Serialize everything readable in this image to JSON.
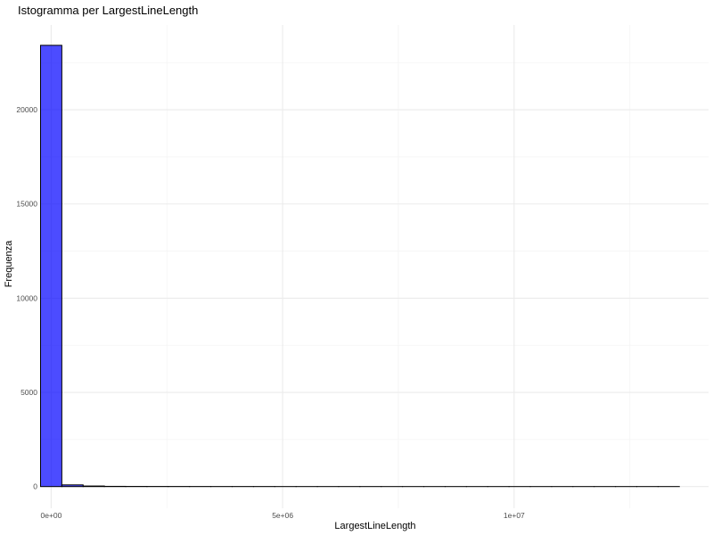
{
  "chart_data": {
    "type": "bar",
    "title": "Istogramma per LargestLineLength",
    "xlabel": "LargestLineLength",
    "ylabel": "Frequenza",
    "xlim": [
      -220000,
      14200000
    ],
    "ylim": [
      -1150,
      24500
    ],
    "x_ticks": [
      0,
      5000000,
      10000000
    ],
    "x_tick_labels": [
      "0e+00",
      "5e+06",
      "1e+07"
    ],
    "x_minor_ticks": [
      2500000,
      7500000,
      12500000
    ],
    "y_ticks": [
      0,
      5000,
      10000,
      15000,
      20000
    ],
    "y_tick_labels": [
      "0",
      "5000",
      "10000",
      "15000",
      "20000"
    ],
    "y_minor_ticks": [
      2500,
      7500,
      12500,
      17500,
      22500
    ],
    "grid": true,
    "bin_width": 460000,
    "bins_start": -230000,
    "bin_counts": [
      23420,
      90,
      30,
      12,
      8,
      6,
      5,
      4,
      3,
      3,
      3,
      2,
      2,
      2,
      2,
      2,
      1,
      1,
      1,
      1,
      1,
      1,
      1,
      1,
      1,
      1,
      1,
      1,
      1,
      1
    ],
    "colors": {
      "bar_fill": "#0000ff",
      "bar_fill_opacity": 0.7,
      "bar_stroke": "#000000",
      "grid_major": "#ebebeb",
      "grid_minor": "#f4f4f4"
    }
  }
}
